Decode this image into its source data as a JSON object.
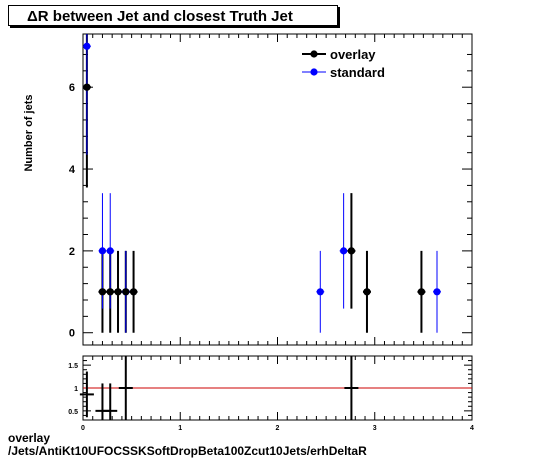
{
  "chart_data": [
    {
      "type": "scatter",
      "title": "ΔR between Jet and closest Truth Jet",
      "ylabel": "Number of jets",
      "xlim": [
        0,
        4
      ],
      "ylim": [
        -0.3,
        7.3
      ],
      "yticks": [
        0,
        2,
        4,
        6
      ],
      "legend_placement": "top-right",
      "series": [
        {
          "name": "overlay",
          "color": "#000000",
          "points": [
            {
              "x": 0.04,
              "y": 6,
              "err": 2.45
            },
            {
              "x": 0.2,
              "y": 1,
              "err": 1
            },
            {
              "x": 0.28,
              "y": 1,
              "err": 1
            },
            {
              "x": 0.36,
              "y": 1,
              "err": 1
            },
            {
              "x": 0.44,
              "y": 1,
              "err": 1
            },
            {
              "x": 0.52,
              "y": 1,
              "err": 1
            },
            {
              "x": 2.76,
              "y": 2,
              "err": 1.41
            },
            {
              "x": 2.92,
              "y": 1,
              "err": 1
            },
            {
              "x": 3.48,
              "y": 1,
              "err": 1
            }
          ]
        },
        {
          "name": "standard",
          "color": "#0000ff",
          "points": [
            {
              "x": 0.04,
              "y": 7,
              "err": 2.65
            },
            {
              "x": 0.2,
              "y": 2,
              "err": 1.41
            },
            {
              "x": 0.28,
              "y": 2,
              "err": 1.41
            },
            {
              "x": 0.44,
              "y": 1,
              "err": 1
            },
            {
              "x": 2.44,
              "y": 1,
              "err": 1
            },
            {
              "x": 2.68,
              "y": 2,
              "err": 1.41
            },
            {
              "x": 3.64,
              "y": 1,
              "err": 1
            }
          ]
        }
      ]
    },
    {
      "type": "line",
      "title": "",
      "xlim": [
        0,
        4
      ],
      "ylim": [
        0.3,
        1.7
      ],
      "xticks": [
        0,
        1,
        2,
        3,
        4
      ],
      "yticks": [
        0.5,
        1,
        1.5
      ],
      "reference_line": {
        "y": 1,
        "color": "#cc0000"
      },
      "ratio_points": [
        {
          "x": 0.04,
          "y": 0.86,
          "err": 0.5
        },
        {
          "x": 0.2,
          "y": 0.5,
          "err": 0.6
        },
        {
          "x": 0.28,
          "y": 0.5,
          "err": 0.6
        },
        {
          "x": 0.44,
          "y": 1.0,
          "err": 1.4
        },
        {
          "x": 2.76,
          "y": 1.0,
          "err": 1.4
        }
      ]
    }
  ],
  "footer": {
    "line1": "overlay",
    "line2": "/Jets/AntiKt10UFOCSSKSoftDropBeta100Zcut10Jets/erhDeltaR"
  }
}
